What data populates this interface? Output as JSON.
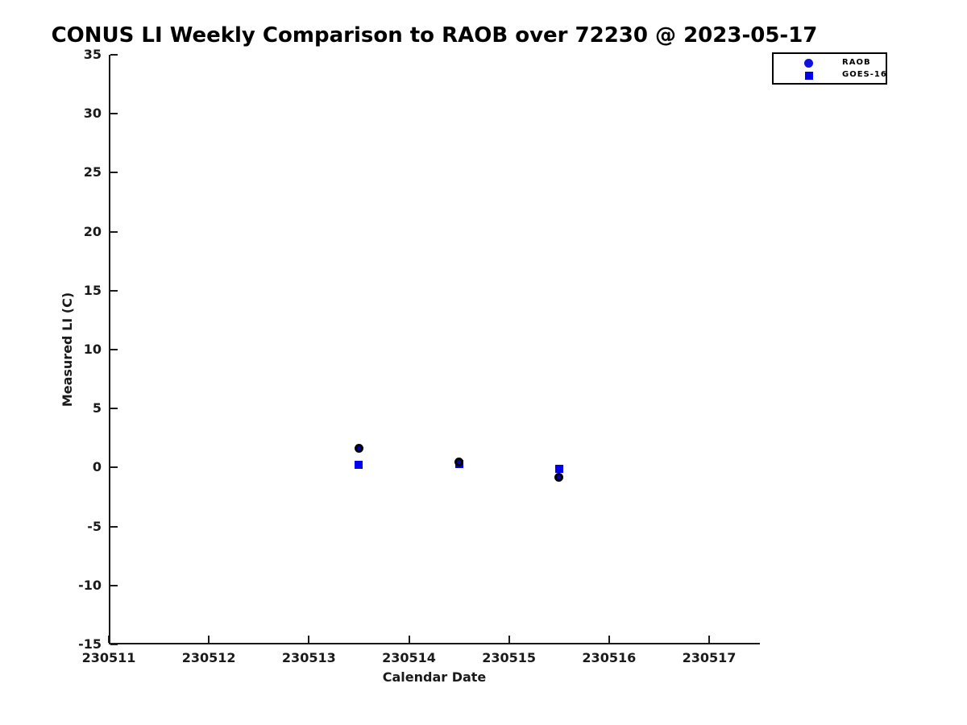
{
  "chart_data": {
    "type": "scatter",
    "title": "CONUS LI Weekly Comparison to RAOB over 72230 @ 2023-05-17",
    "xlabel": "Calendar Date",
    "ylabel": "Measured LI (C)",
    "xlim": [
      230511,
      230517.5
    ],
    "ylim": [
      -15,
      35
    ],
    "x_ticks": [
      "230511",
      "230512",
      "230513",
      "230514",
      "230515",
      "230516",
      "230517"
    ],
    "y_ticks": [
      "35",
      "30",
      "25",
      "20",
      "15",
      "10",
      "5",
      "0",
      "-5",
      "-10",
      "-15"
    ],
    "grid": false,
    "legend_position": "top-right-outside-plot",
    "series": [
      {
        "name": "GOES-16",
        "marker": "square",
        "face_color": "#0000EE",
        "edge_color": "#0000EE",
        "x": [
          230513.5,
          230514.5,
          230515.5
        ],
        "y": [
          0.2,
          0.3,
          -0.1
        ]
      },
      {
        "name": "RAOB",
        "marker": "circle",
        "face_color": "#0000B4",
        "edge_color": "#000000",
        "x": [
          230513.5,
          230514.5,
          230515.5
        ],
        "y": [
          1.6,
          0.5,
          -0.8
        ]
      }
    ],
    "legend": {
      "items": [
        {
          "label": "RAOB",
          "marker": "circle",
          "color": "#1010E0"
        },
        {
          "label": "GOES-16",
          "marker": "square",
          "color": "#0000EE"
        }
      ]
    }
  }
}
